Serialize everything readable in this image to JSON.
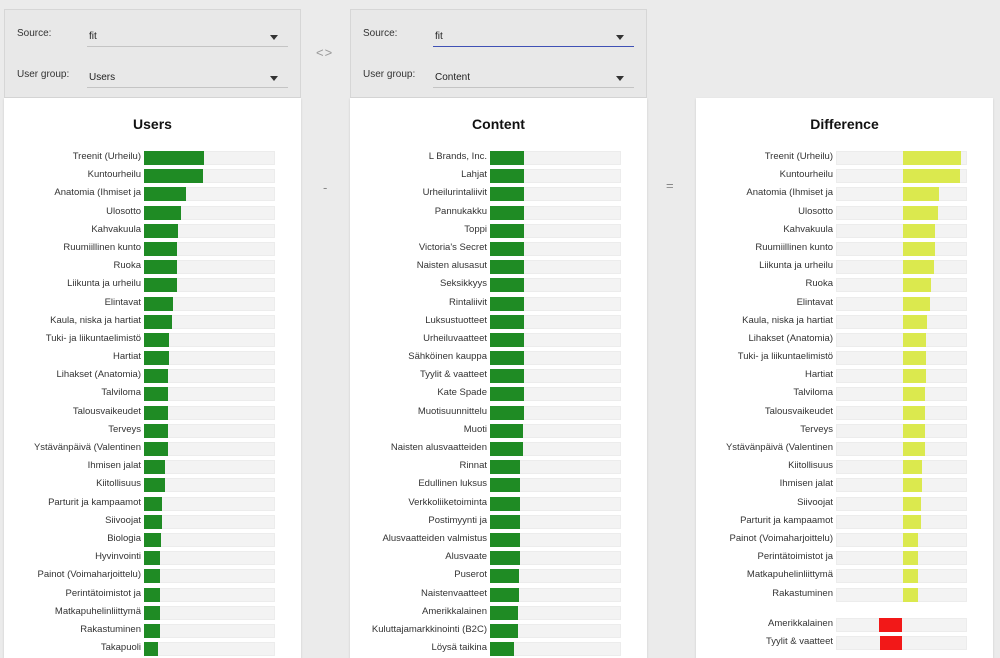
{
  "left_selector": {
    "source_label": "Source:",
    "source_value": "fit",
    "group_label": "User group:",
    "group_value": "Users"
  },
  "right_selector": {
    "source_label": "Source:",
    "source_value": "fit",
    "group_label": "User group:",
    "group_value": "Content"
  },
  "swap_symbol": "<>",
  "minus_symbol": "-",
  "equals_symbol": "=",
  "colors": {
    "users_bar": "#1f8b24",
    "content_bar": "#1f8b24",
    "positive_diff": "#dbe94e",
    "negative_diff": "#f21818",
    "track": "#f3f3f3"
  },
  "chart_data": [
    {
      "type": "bar",
      "title": "Users",
      "categories": [
        "Treenit (Urheilu)",
        "Kuntourheilu",
        "Anatomia (Ihmiset ja",
        "Ulosotto",
        "Kahvakuula",
        "Ruumiillinen kunto",
        "Ruoka",
        "Liikunta ja urheilu",
        "Elintavat",
        "Kaula, niska ja hartiat",
        "Tuki- ja liikuntaelimistö",
        "Hartiat",
        "Lihakset (Anatomia)",
        "Talviloma",
        "Talousvaikeudet",
        "Terveys",
        "Ystävänpäivä (Valentinen",
        "Ihmisen jalat",
        "Kiitollisuus",
        "Parturit ja kampaamot",
        "Siivoojat",
        "Biologia",
        "Hyvinvointi",
        "Painot (Voimaharjoittelu)",
        "Perintätoimistot ja",
        "Matkapuhelinliittymä",
        "Rakastuminen",
        "Takapuoli"
      ],
      "values": [
        0.46,
        0.45,
        0.32,
        0.28,
        0.26,
        0.25,
        0.25,
        0.25,
        0.22,
        0.21,
        0.19,
        0.19,
        0.18,
        0.18,
        0.18,
        0.18,
        0.18,
        0.16,
        0.16,
        0.14,
        0.14,
        0.13,
        0.12,
        0.12,
        0.12,
        0.12,
        0.12,
        0.11
      ],
      "xlim": [
        0,
        1
      ]
    },
    {
      "type": "bar",
      "title": "Content",
      "categories": [
        "L Brands, Inc.",
        "Lahjat",
        "Urheilurintaliivit",
        "Pannukakku",
        "Toppi",
        "Victoria's Secret",
        "Naisten alusasut",
        "Seksikkyys",
        "Rintaliivit",
        "Luksustuotteet",
        "Urheiluvaatteet",
        "Sähköinen kauppa",
        "Tyylit & vaatteet",
        "Kate Spade",
        "Muotisuunnittelu",
        "Muoti",
        "Naisten alusvaatteiden",
        "Rinnat",
        "Edullinen luksus",
        "Verkkoliiketoiminta",
        "Postimyynti ja",
        "Alusvaatteiden valmistus",
        "Alusvaate",
        "Puserot",
        "Naistenvaatteet",
        "Amerikkalainen",
        "Kuluttajamarkkinointi (B2C)",
        "Löysä taikina"
      ],
      "values": [
        0.26,
        0.26,
        0.26,
        0.26,
        0.26,
        0.26,
        0.26,
        0.26,
        0.26,
        0.26,
        0.26,
        0.26,
        0.26,
        0.26,
        0.26,
        0.25,
        0.25,
        0.23,
        0.23,
        0.23,
        0.23,
        0.23,
        0.23,
        0.22,
        0.22,
        0.21,
        0.21,
        0.18
      ],
      "xlim": [
        0,
        1
      ]
    },
    {
      "type": "bar",
      "title": "Difference",
      "categories": [
        "Treenit (Urheilu)",
        "Kuntourheilu",
        "Anatomia (Ihmiset ja",
        "Ulosotto",
        "Kahvakuula",
        "Ruumiillinen kunto",
        "Liikunta ja urheilu",
        "Ruoka",
        "Elintavat",
        "Kaula, niska ja hartiat",
        "Lihakset (Anatomia)",
        "Tuki- ja liikuntaelimistö",
        "Hartiat",
        "Talviloma",
        "Talousvaikeudet",
        "Terveys",
        "Ystävänpäivä (Valentinen",
        "Kiitollisuus",
        "Ihmisen jalat",
        "Siivoojat",
        "Parturit ja kampaamot",
        "Painot (Voimaharjoittelu)",
        "Perintätoimistot ja",
        "Matkapuhelinliittymä",
        "Rakastuminen",
        "Amerikkalainen",
        "Tyylit & vaatteet"
      ],
      "values": [
        0.45,
        0.44,
        0.28,
        0.27,
        0.25,
        0.25,
        0.24,
        0.22,
        0.21,
        0.19,
        0.18,
        0.18,
        0.18,
        0.17,
        0.17,
        0.17,
        0.17,
        0.15,
        0.15,
        0.14,
        0.14,
        0.12,
        0.12,
        0.12,
        0.12,
        -0.18,
        -0.17
      ],
      "xlim": [
        -0.5,
        0.5
      ],
      "separator_after_index": 24
    }
  ]
}
